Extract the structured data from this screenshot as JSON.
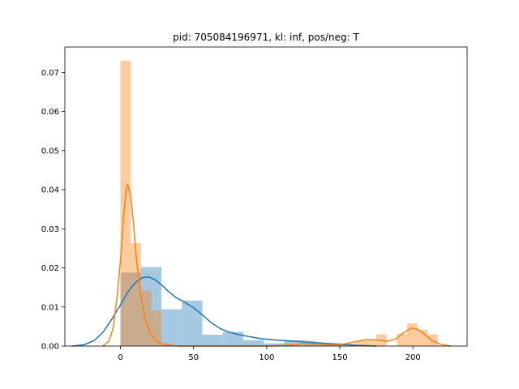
{
  "chart_data": {
    "type": "histogram",
    "title": "pid: 705084196971, kl: inf, pos/neg: T",
    "xlabel": "",
    "ylabel": "",
    "xlim": [
      -38,
      237
    ],
    "ylim": [
      0,
      0.0765
    ],
    "xticks": [
      0,
      50,
      100,
      150,
      200
    ],
    "yticks": [
      0.0,
      0.01,
      0.02,
      0.03,
      0.04,
      0.05,
      0.06,
      0.07
    ],
    "ytick_labels": [
      "0.00",
      "0.01",
      "0.02",
      "0.03",
      "0.04",
      "0.05",
      "0.06",
      "0.07"
    ],
    "grid": false,
    "legend": false,
    "series": [
      {
        "color": "#1f77b4",
        "bins": [
          {
            "x0": 0,
            "x1": 14,
            "value": 0.0188
          },
          {
            "x0": 14,
            "x1": 28,
            "value": 0.0202
          },
          {
            "x0": 28,
            "x1": 42,
            "value": 0.0094
          },
          {
            "x0": 42,
            "x1": 56,
            "value": 0.0116
          },
          {
            "x0": 56,
            "x1": 70,
            "value": 0.0029
          },
          {
            "x0": 70,
            "x1": 84,
            "value": 0.0036
          },
          {
            "x0": 84,
            "x1": 98,
            "value": 0.0015
          },
          {
            "x0": 98,
            "x1": 112,
            "value": 0.0007
          },
          {
            "x0": 112,
            "x1": 126,
            "value": 0.0015
          },
          {
            "x0": 126,
            "x1": 140,
            "value": 0.0007
          },
          {
            "x0": 140,
            "x1": 154,
            "value": 0.0007
          }
        ],
        "kde": [
          {
            "x": -33,
            "y": 0.0
          },
          {
            "x": -25,
            "y": 0.0003
          },
          {
            "x": -18,
            "y": 0.0014
          },
          {
            "x": -12,
            "y": 0.0035
          },
          {
            "x": -6,
            "y": 0.0068
          },
          {
            "x": 0,
            "y": 0.0105
          },
          {
            "x": 5,
            "y": 0.0138
          },
          {
            "x": 10,
            "y": 0.0162
          },
          {
            "x": 15,
            "y": 0.0175
          },
          {
            "x": 19,
            "y": 0.0177
          },
          {
            "x": 23,
            "y": 0.0171
          },
          {
            "x": 28,
            "y": 0.0157
          },
          {
            "x": 33,
            "y": 0.0139
          },
          {
            "x": 38,
            "y": 0.0124
          },
          {
            "x": 44,
            "y": 0.0112
          },
          {
            "x": 50,
            "y": 0.0098
          },
          {
            "x": 56,
            "y": 0.008
          },
          {
            "x": 62,
            "y": 0.006
          },
          {
            "x": 68,
            "y": 0.0045
          },
          {
            "x": 74,
            "y": 0.0036
          },
          {
            "x": 80,
            "y": 0.003
          },
          {
            "x": 88,
            "y": 0.0024
          },
          {
            "x": 96,
            "y": 0.0019
          },
          {
            "x": 104,
            "y": 0.0016
          },
          {
            "x": 112,
            "y": 0.0014
          },
          {
            "x": 120,
            "y": 0.0012
          },
          {
            "x": 128,
            "y": 0.001
          },
          {
            "x": 136,
            "y": 0.0008
          },
          {
            "x": 144,
            "y": 0.0006
          },
          {
            "x": 152,
            "y": 0.0004
          },
          {
            "x": 160,
            "y": 0.0002
          },
          {
            "x": 168,
            "y": 0.0001
          },
          {
            "x": 175,
            "y": 0.0
          }
        ]
      },
      {
        "color": "#ff7f0e",
        "bins": [
          {
            "x0": 0,
            "x1": 7,
            "value": 0.073
          },
          {
            "x0": 7,
            "x1": 14,
            "value": 0.0263
          },
          {
            "x0": 14,
            "x1": 21,
            "value": 0.0142
          },
          {
            "x0": 21,
            "x1": 28,
            "value": 0.009
          },
          {
            "x0": 28,
            "x1": 35,
            "value": 0.0007
          },
          {
            "x0": 112,
            "x1": 119,
            "value": 0.0007
          },
          {
            "x0": 126,
            "x1": 133,
            "value": 0.0014
          },
          {
            "x0": 154,
            "x1": 161,
            "value": 0.0007
          },
          {
            "x0": 161,
            "x1": 168,
            "value": 0.0014
          },
          {
            "x0": 168,
            "x1": 175,
            "value": 0.0014
          },
          {
            "x0": 175,
            "x1": 182,
            "value": 0.003
          },
          {
            "x0": 189,
            "x1": 196,
            "value": 0.0031
          },
          {
            "x0": 196,
            "x1": 203,
            "value": 0.0058
          },
          {
            "x0": 203,
            "x1": 210,
            "value": 0.0042
          },
          {
            "x0": 210,
            "x1": 217,
            "value": 0.003
          }
        ],
        "kde": [
          {
            "x": -12,
            "y": 0.0
          },
          {
            "x": -8,
            "y": 0.0012
          },
          {
            "x": -5,
            "y": 0.0045
          },
          {
            "x": -2,
            "y": 0.0135
          },
          {
            "x": 0,
            "y": 0.022
          },
          {
            "x": 2,
            "y": 0.0325
          },
          {
            "x": 4,
            "y": 0.0405
          },
          {
            "x": 5,
            "y": 0.0413
          },
          {
            "x": 7,
            "y": 0.0385
          },
          {
            "x": 9,
            "y": 0.031
          },
          {
            "x": 11,
            "y": 0.022
          },
          {
            "x": 14,
            "y": 0.0128
          },
          {
            "x": 17,
            "y": 0.0068
          },
          {
            "x": 20,
            "y": 0.0035
          },
          {
            "x": 24,
            "y": 0.0013
          },
          {
            "x": 30,
            "y": 0.0003
          },
          {
            "x": 40,
            "y": 0.0
          },
          {
            "x": 100,
            "y": 0.0
          },
          {
            "x": 115,
            "y": 0.0002
          },
          {
            "x": 128,
            "y": 0.0007
          },
          {
            "x": 140,
            "y": 0.0003
          },
          {
            "x": 150,
            "y": 0.0003
          },
          {
            "x": 160,
            "y": 0.0011
          },
          {
            "x": 168,
            "y": 0.0016
          },
          {
            "x": 175,
            "y": 0.0016
          },
          {
            "x": 182,
            "y": 0.0012
          },
          {
            "x": 188,
            "y": 0.0018
          },
          {
            "x": 194,
            "y": 0.0035
          },
          {
            "x": 199,
            "y": 0.0046
          },
          {
            "x": 203,
            "y": 0.0043
          },
          {
            "x": 208,
            "y": 0.003
          },
          {
            "x": 213,
            "y": 0.0014
          },
          {
            "x": 219,
            "y": 0.0004
          },
          {
            "x": 226,
            "y": 0.0
          }
        ]
      }
    ]
  }
}
